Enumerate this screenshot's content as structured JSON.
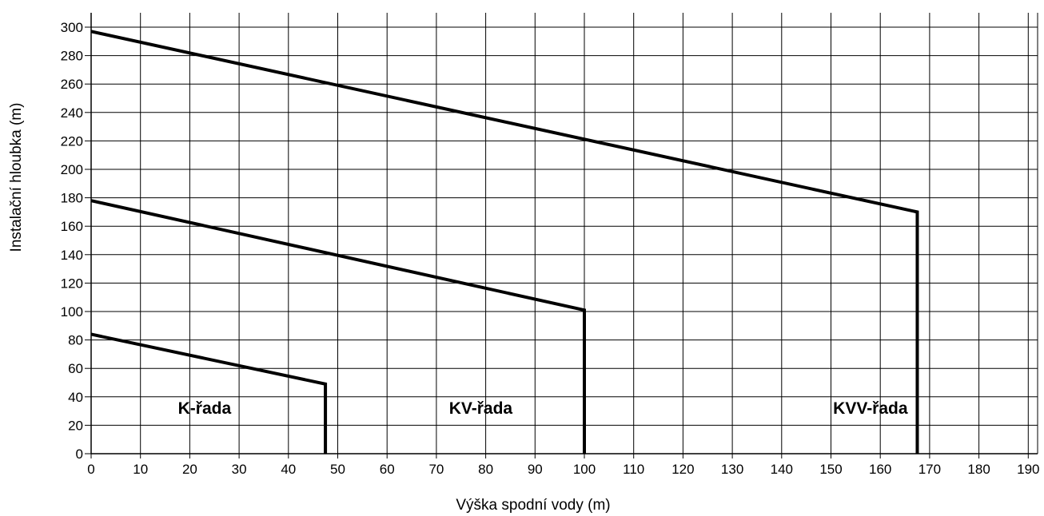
{
  "chart_data": {
    "type": "line",
    "title": "",
    "xlabel": "Výška spodní vody (m)",
    "ylabel": "Instalační hloubka (m)",
    "xlim": [
      0,
      190
    ],
    "ylim": [
      0,
      300
    ],
    "x_ticks": [
      "0",
      "10",
      "20",
      "30",
      "40",
      "50",
      "60",
      "70",
      "80",
      "90",
      "100",
      "110",
      "120",
      "130",
      "140",
      "150",
      "160",
      "170",
      "180",
      "190"
    ],
    "y_ticks": [
      "0",
      "20",
      "40",
      "60",
      "80",
      "100",
      "120",
      "140",
      "160",
      "180",
      "200",
      "220",
      "240",
      "260",
      "280",
      "300"
    ],
    "grid": true,
    "series": [
      {
        "name": "K-řada",
        "x": [
          0,
          47.5,
          47.5
        ],
        "y": [
          84,
          49,
          0
        ]
      },
      {
        "name": "KV-řada",
        "x": [
          0,
          100,
          100
        ],
        "y": [
          178,
          101,
          0
        ]
      },
      {
        "name": "KVV-řada",
        "x": [
          0,
          167.5,
          167.5
        ],
        "y": [
          297,
          170,
          0
        ]
      }
    ],
    "series_label_positions_data": [
      {
        "x": 23,
        "y": 28
      },
      {
        "x": 79,
        "y": 28
      },
      {
        "x": 158,
        "y": 28
      }
    ]
  }
}
